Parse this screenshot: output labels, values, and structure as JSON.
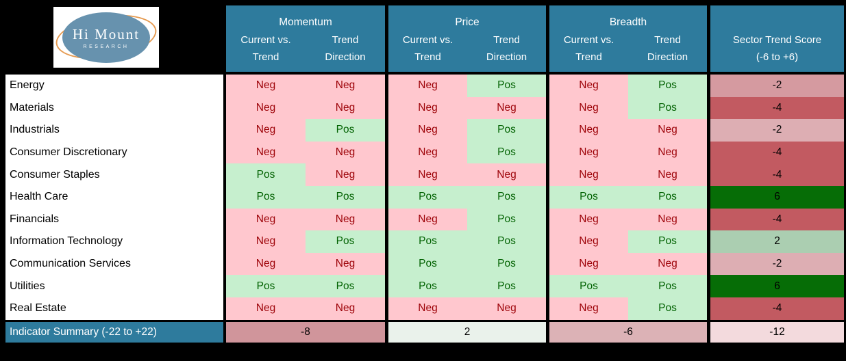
{
  "logo": {
    "name": "Hi Mount",
    "subtitle": "RESEARCH"
  },
  "colors": {
    "header_teal": "#2E7B9D",
    "neg_bg": "#FFC7CE",
    "neg_text": "#9C0006",
    "pos_bg": "#C6EFCE",
    "pos_text": "#006100",
    "frame": "#000000",
    "logo_blue": "#6792AE",
    "logo_orange": "#E59A50"
  },
  "chart_data": {
    "type": "table",
    "groups": [
      {
        "title": "Momentum",
        "col1": [
          "Current vs.",
          "Trend"
        ],
        "col2": [
          "Trend",
          "Direction"
        ]
      },
      {
        "title": "Price",
        "col1": [
          "Current vs.",
          "Trend"
        ],
        "col2": [
          "Trend",
          "Direction"
        ]
      },
      {
        "title": "Breadth",
        "col1": [
          "Current vs.",
          "Trend"
        ],
        "col2": [
          "Trend",
          "Direction"
        ]
      }
    ],
    "score_header": [
      "Sector Trend Score",
      "(-6 to +6)"
    ],
    "score_range": [
      -6,
      6
    ],
    "rows": [
      {
        "sector": "Energy",
        "momentum": [
          "Neg",
          "Neg"
        ],
        "price": [
          "Neg",
          "Pos"
        ],
        "breadth": [
          "Neg",
          "Pos"
        ],
        "score": "-2",
        "score_bg": "#D59AA0"
      },
      {
        "sector": "Materials",
        "momentum": [
          "Neg",
          "Neg"
        ],
        "price": [
          "Neg",
          "Neg"
        ],
        "breadth": [
          "Neg",
          "Pos"
        ],
        "score": "-4",
        "score_bg": "#C25A61"
      },
      {
        "sector": "Industrials",
        "momentum": [
          "Neg",
          "Pos"
        ],
        "price": [
          "Neg",
          "Pos"
        ],
        "breadth": [
          "Neg",
          "Neg"
        ],
        "score": "-2",
        "score_bg": "#DDAEB3"
      },
      {
        "sector": "Consumer Discretionary",
        "momentum": [
          "Neg",
          "Neg"
        ],
        "price": [
          "Neg",
          "Pos"
        ],
        "breadth": [
          "Neg",
          "Neg"
        ],
        "score": "-4",
        "score_bg": "#C25A61"
      },
      {
        "sector": "Consumer Staples",
        "momentum": [
          "Pos",
          "Neg"
        ],
        "price": [
          "Neg",
          "Neg"
        ],
        "breadth": [
          "Neg",
          "Neg"
        ],
        "score": "-4",
        "score_bg": "#C25A61"
      },
      {
        "sector": "Health Care",
        "momentum": [
          "Pos",
          "Pos"
        ],
        "price": [
          "Pos",
          "Pos"
        ],
        "breadth": [
          "Pos",
          "Pos"
        ],
        "score": "6",
        "score_bg": "#066D06"
      },
      {
        "sector": "Financials",
        "momentum": [
          "Neg",
          "Neg"
        ],
        "price": [
          "Neg",
          "Pos"
        ],
        "breadth": [
          "Neg",
          "Neg"
        ],
        "score": "-4",
        "score_bg": "#C25A61"
      },
      {
        "sector": "Information Technology",
        "momentum": [
          "Neg",
          "Pos"
        ],
        "price": [
          "Pos",
          "Pos"
        ],
        "breadth": [
          "Neg",
          "Pos"
        ],
        "score": "2",
        "score_bg": "#ABCEB1"
      },
      {
        "sector": "Communication Services",
        "momentum": [
          "Neg",
          "Neg"
        ],
        "price": [
          "Pos",
          "Pos"
        ],
        "breadth": [
          "Neg",
          "Neg"
        ],
        "score": "-2",
        "score_bg": "#DDAEB3"
      },
      {
        "sector": "Utilities",
        "momentum": [
          "Pos",
          "Pos"
        ],
        "price": [
          "Pos",
          "Pos"
        ],
        "breadth": [
          "Pos",
          "Pos"
        ],
        "score": "6",
        "score_bg": "#066D06"
      },
      {
        "sector": "Real Estate",
        "momentum": [
          "Neg",
          "Neg"
        ],
        "price": [
          "Neg",
          "Neg"
        ],
        "breadth": [
          "Neg",
          "Pos"
        ],
        "score": "-4",
        "score_bg": "#C25A61"
      }
    ],
    "summary": {
      "label": "Indicator Summary (-22 to +22)",
      "range": [
        -22,
        22
      ],
      "values": [
        {
          "group": "Momentum",
          "v": "-8",
          "bg": "#D0959B"
        },
        {
          "group": "Price",
          "v": "2",
          "bg": "#EAF2EB"
        },
        {
          "group": "Breadth",
          "v": "-6",
          "bg": "#DCB2B6"
        },
        {
          "group": "Total",
          "v": "-12",
          "bg": "#F3DADD"
        }
      ]
    }
  }
}
